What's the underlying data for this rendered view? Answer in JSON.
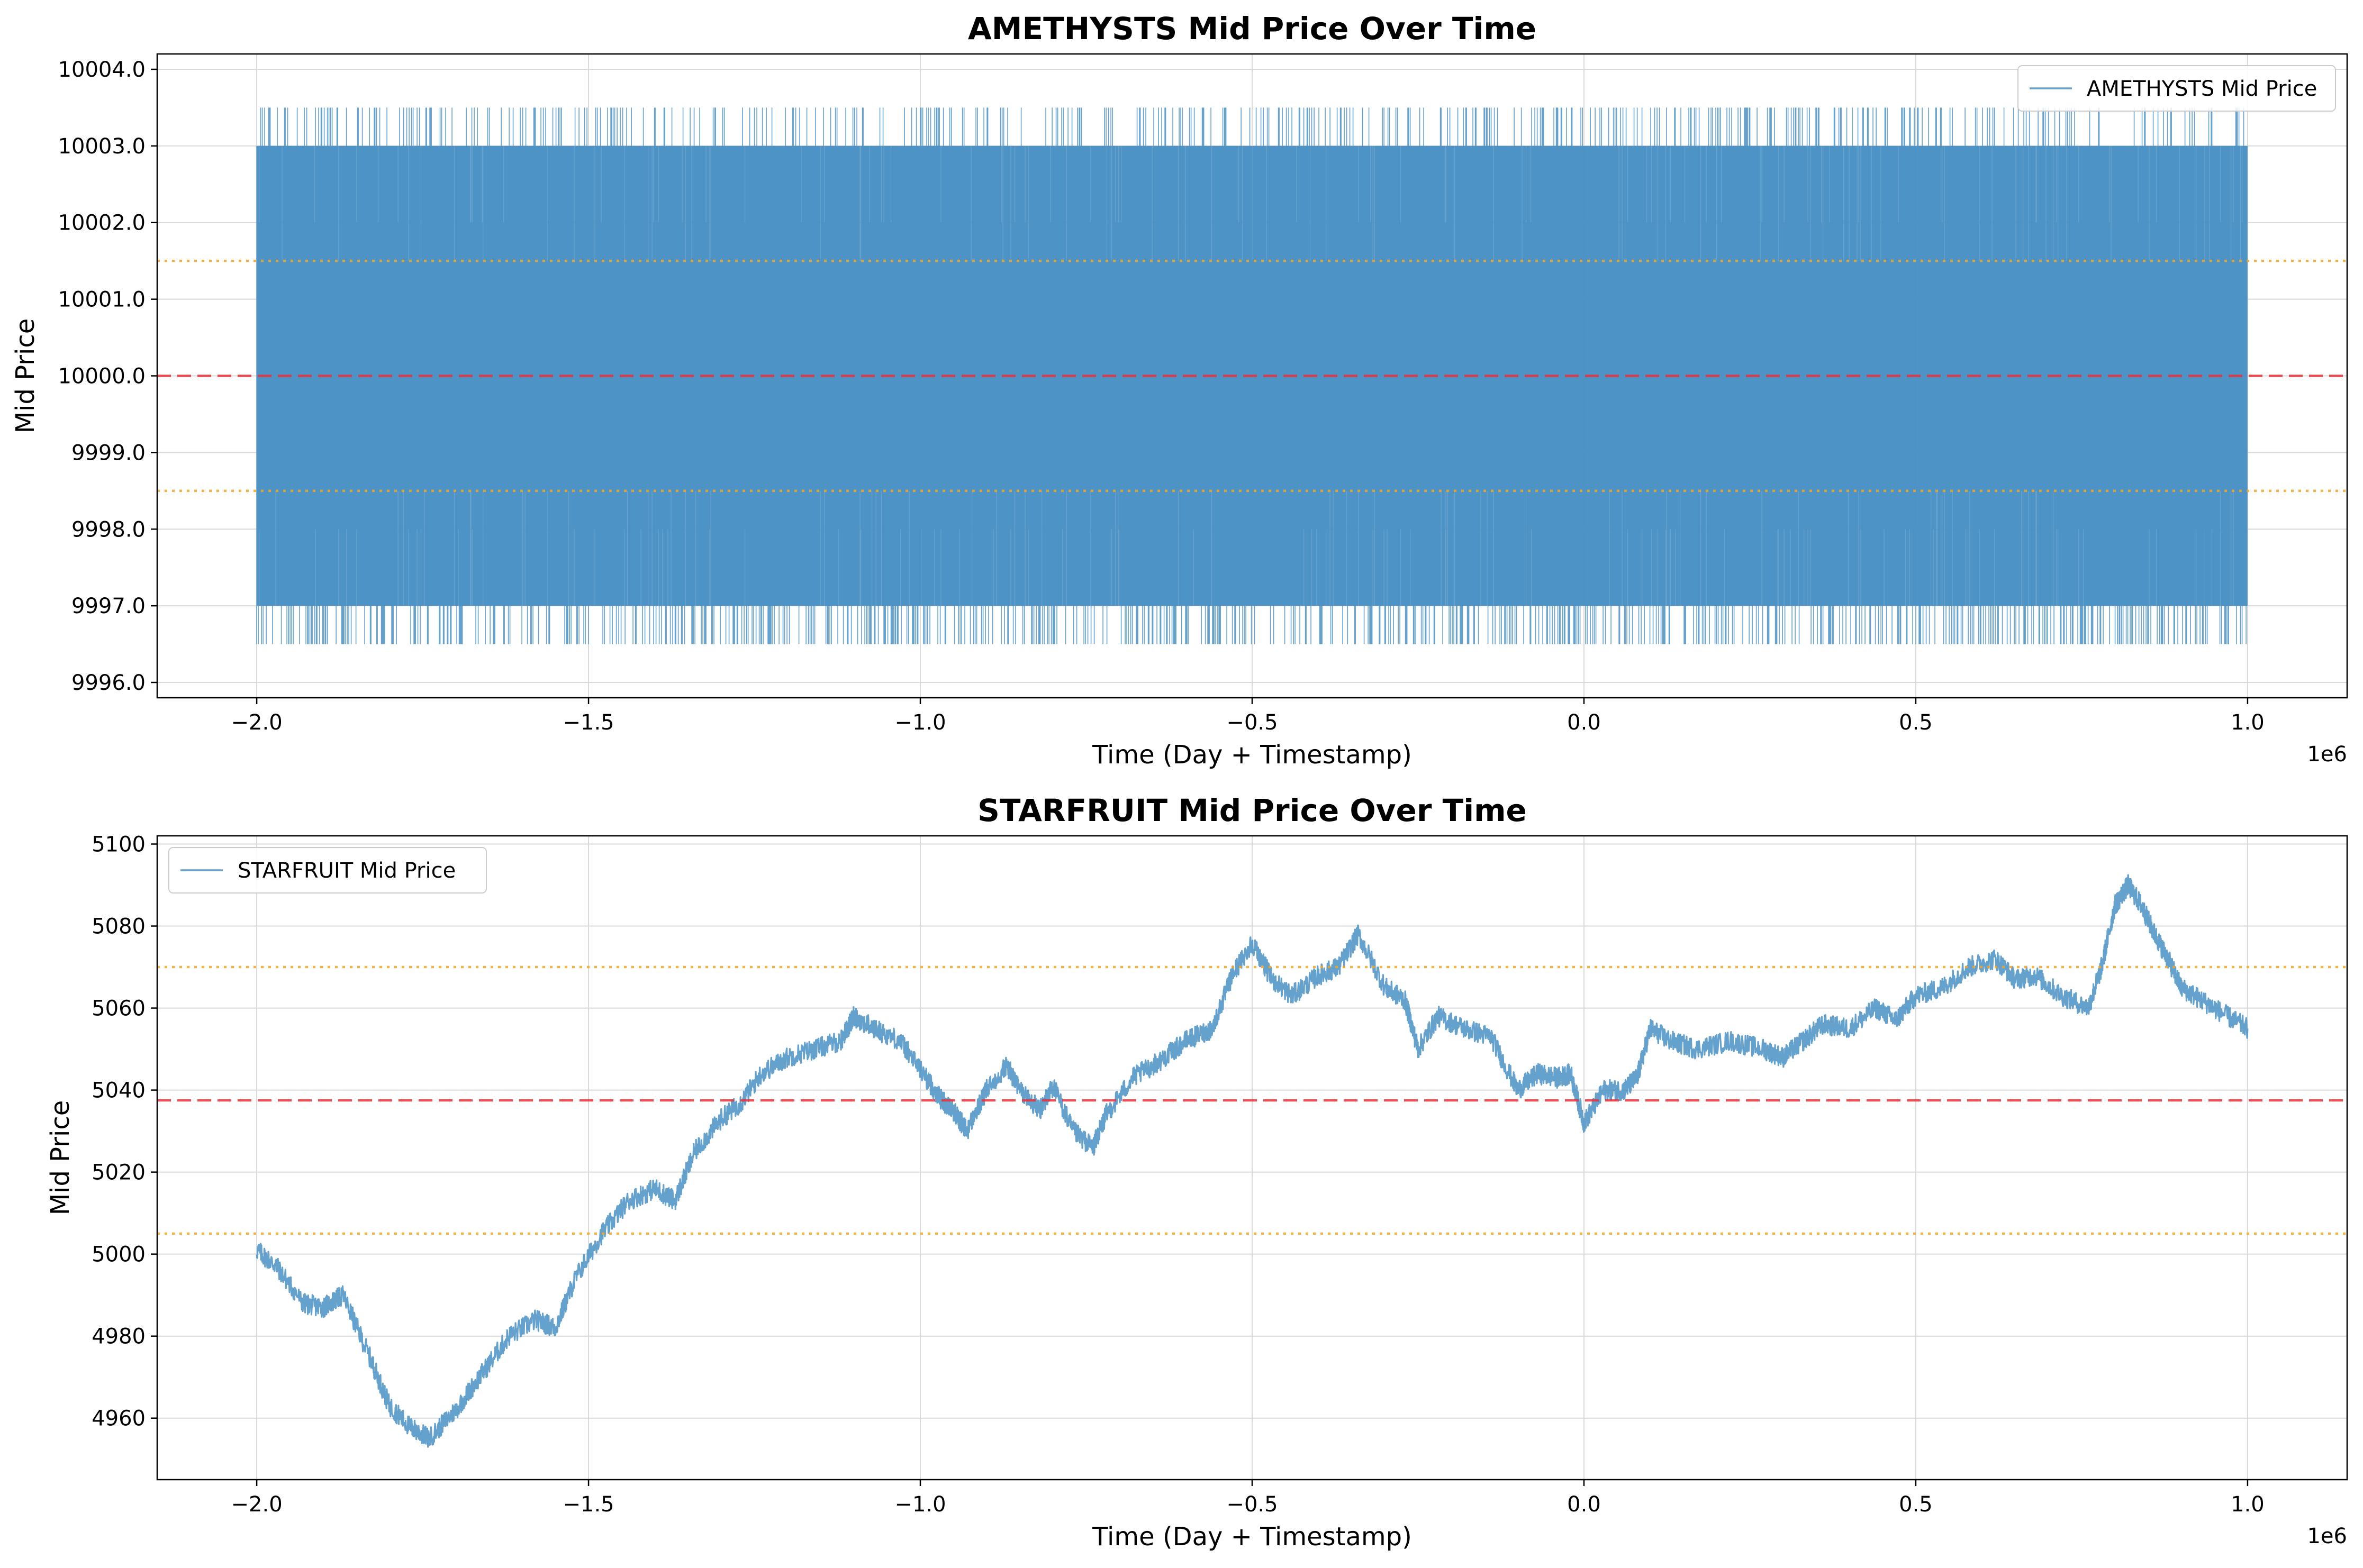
{
  "colors": {
    "series": "#4a90c4",
    "mean_line": "#e8303a",
    "band_line": "#f5a623",
    "grid": "#d9d9d9",
    "axes": "#000000"
  },
  "chart_data": [
    {
      "type": "line",
      "title": "AMETHYSTS Mid Price Over Time",
      "xlabel": "Time (Day + Timestamp)",
      "ylabel": "Mid Price",
      "x_offset_label": "1e6",
      "xlim": [
        -2.15,
        1.15
      ],
      "ylim": [
        9995.8,
        10004.2
      ],
      "xticks": [
        -2.0,
        -1.5,
        -1.0,
        -0.5,
        0.0,
        0.5,
        1.0
      ],
      "xtick_labels": [
        "−2.0",
        "−1.5",
        "−1.0",
        "−0.5",
        "0.0",
        "0.5",
        "1.0"
      ],
      "yticks": [
        9996.0,
        9997.0,
        9998.0,
        9999.0,
        10000.0,
        10001.0,
        10002.0,
        10003.0,
        10004.0
      ],
      "ytick_labels": [
        "9996.0",
        "9997.0",
        "9998.0",
        "9999.0",
        "10000.0",
        "10001.0",
        "10002.0",
        "10003.0",
        "10004.0"
      ],
      "grid": true,
      "legend_position": "upper-right",
      "series": [
        {
          "name": "AMETHYSTS Mid Price",
          "x_range": [
            -2.0,
            1.0
          ],
          "levels": [
            9996.5,
            9997.0,
            9998.0,
            9998.5,
            9999.0,
            10000.0,
            10001.0,
            10001.5,
            10002.0,
            10003.0,
            10003.5
          ],
          "dense_band": [
            9997.0,
            10003.0
          ],
          "extremes": [
            9996.5,
            10003.5
          ]
        }
      ],
      "reference_lines": [
        {
          "kind": "mean",
          "value": 10000.0,
          "style": "dashed"
        },
        {
          "kind": "upper",
          "value": 10001.5,
          "style": "dotted"
        },
        {
          "kind": "lower",
          "value": 9998.5,
          "style": "dotted"
        }
      ]
    },
    {
      "type": "line",
      "title": "STARFRUIT Mid Price Over Time",
      "xlabel": "Time (Day + Timestamp)",
      "ylabel": "Mid Price",
      "x_offset_label": "1e6",
      "xlim": [
        -2.15,
        1.15
      ],
      "ylim": [
        4945,
        5102
      ],
      "xticks": [
        -2.0,
        -1.5,
        -1.0,
        -0.5,
        0.0,
        0.5,
        1.0
      ],
      "xtick_labels": [
        "−2.0",
        "−1.5",
        "−1.0",
        "−0.5",
        "0.0",
        "0.5",
        "1.0"
      ],
      "yticks": [
        4960,
        4980,
        5000,
        5020,
        5040,
        5060,
        5080,
        5100
      ],
      "ytick_labels": [
        "4960",
        "4980",
        "5000",
        "5020",
        "5040",
        "5060",
        "5080",
        "5100"
      ],
      "grid": true,
      "legend_position": "upper-left",
      "series": [
        {
          "name": "STARFRUIT Mid Price",
          "x": [
            -2.0,
            -1.97,
            -1.93,
            -1.9,
            -1.87,
            -1.83,
            -1.8,
            -1.77,
            -1.74,
            -1.7,
            -1.66,
            -1.62,
            -1.58,
            -1.55,
            -1.52,
            -1.48,
            -1.44,
            -1.4,
            -1.37,
            -1.34,
            -1.3,
            -1.27,
            -1.24,
            -1.2,
            -1.16,
            -1.12,
            -1.1,
            -1.07,
            -1.03,
            -1.0,
            -0.97,
            -0.95,
            -0.93,
            -0.9,
            -0.87,
            -0.85,
            -0.82,
            -0.8,
            -0.77,
            -0.74,
            -0.72,
            -0.68,
            -0.64,
            -0.6,
            -0.56,
            -0.53,
            -0.5,
            -0.47,
            -0.44,
            -0.4,
            -0.37,
            -0.34,
            -0.3,
            -0.27,
            -0.25,
            -0.22,
            -0.18,
            -0.14,
            -0.1,
            -0.07,
            -0.04,
            -0.02,
            0.0,
            0.03,
            0.06,
            0.08,
            0.1,
            0.13,
            0.17,
            0.22,
            0.27,
            0.3,
            0.33,
            0.36,
            0.4,
            0.44,
            0.47,
            0.5,
            0.54,
            0.58,
            0.62,
            0.65,
            0.68,
            0.72,
            0.76,
            0.78,
            0.8,
            0.82,
            0.84,
            0.86,
            0.88,
            0.9,
            0.93,
            0.96,
            1.0
          ],
          "y": [
            5001,
            4997,
            4988,
            4987,
            4990,
            4975,
            4963,
            4958,
            4955,
            4962,
            4971,
            4980,
            4984,
            4982,
            4994,
            5005,
            5013,
            5016,
            5013,
            5025,
            5033,
            5037,
            5044,
            5048,
            5050,
            5052,
            5058,
            5055,
            5052,
            5045,
            5038,
            5035,
            5030,
            5040,
            5046,
            5040,
            5035,
            5041,
            5030,
            5026,
            5034,
            5043,
            5047,
            5052,
            5055,
            5068,
            5076,
            5067,
            5063,
            5068,
            5070,
            5078,
            5065,
            5062,
            5050,
            5058,
            5055,
            5053,
            5040,
            5044,
            5043,
            5044,
            5032,
            5040,
            5040,
            5043,
            5055,
            5052,
            5050,
            5052,
            5050,
            5048,
            5052,
            5056,
            5055,
            5060,
            5057,
            5063,
            5065,
            5070,
            5072,
            5067,
            5068,
            5063,
            5060,
            5070,
            5085,
            5090,
            5085,
            5078,
            5072,
            5065,
            5062,
            5059,
            5055
          ]
        }
      ],
      "reference_lines": [
        {
          "kind": "mean",
          "value": 5037.5,
          "style": "dashed"
        },
        {
          "kind": "upper",
          "value": 5070.0,
          "style": "dotted"
        },
        {
          "kind": "lower",
          "value": 5005.0,
          "style": "dotted"
        }
      ]
    }
  ]
}
